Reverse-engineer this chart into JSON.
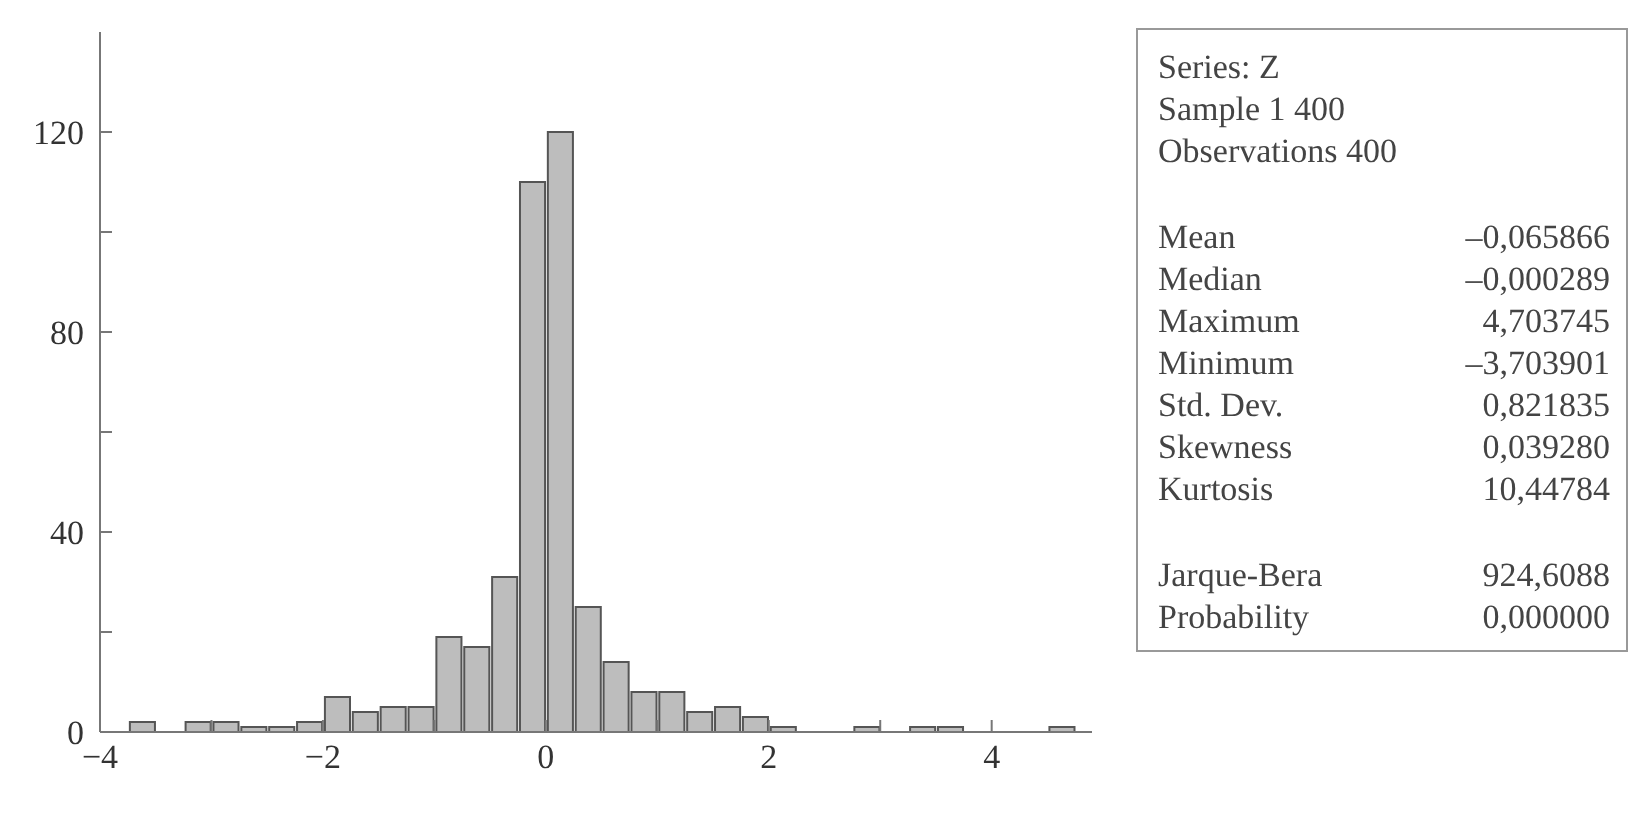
{
  "chart_data": [
    {
      "type": "histogram",
      "bins": [
        -3.75,
        -3.5,
        -3.25,
        -3,
        -2.75,
        -2.5,
        -2.25,
        -2,
        -1.75,
        -1.5,
        -1.25,
        -1,
        -0.75,
        -0.5,
        -0.25,
        0,
        0.25,
        0.5,
        0.75,
        1,
        1.25,
        1.5,
        1.75,
        2,
        2.25,
        2.5,
        2.75,
        3,
        3.25,
        3.5,
        3.75,
        4,
        4.25,
        4.5,
        4.75
      ],
      "values": [
        2,
        0,
        2,
        2,
        1,
        1,
        2,
        7,
        4,
        5,
        5,
        19,
        17,
        31,
        110,
        120,
        25,
        14,
        8,
        8,
        4,
        5,
        3,
        1,
        0,
        0,
        1,
        0,
        1,
        1,
        0,
        0,
        0,
        1
      ],
      "color": "#bdbdbd",
      "xlim": [
        -4,
        4.9
      ],
      "xticks": [
        -4,
        {
          "value": -3,
          "label": null
        },
        -2,
        {
          "value": -1,
          "label": null
        },
        0,
        {
          "value": 1,
          "label": null
        },
        2,
        {
          "value": 3,
          "label": null
        },
        4
      ],
      "ylim": [
        0,
        140
      ],
      "yticks": [
        0,
        {
          "value": 20,
          "label": null
        },
        40,
        {
          "value": 60,
          "label": null
        },
        80,
        {
          "value": 100,
          "label": null
        },
        120
      ],
      "grid": false,
      "legend": false
    },
    {
      "type": "other",
      "annotations": [
        "Series: Z",
        "Sample 1 400",
        "Observations 400",
        "Mean –0,065866",
        "Median –0,000289",
        "Maximum 4,703745",
        "Minimum –3,703901",
        "Std. Dev. 0,821835",
        "Skewness 0,039280",
        "Kurtosis 10,44784",
        "Jarque-Bera 924,6088",
        "Probability 0,000000"
      ]
    }
  ]
}
